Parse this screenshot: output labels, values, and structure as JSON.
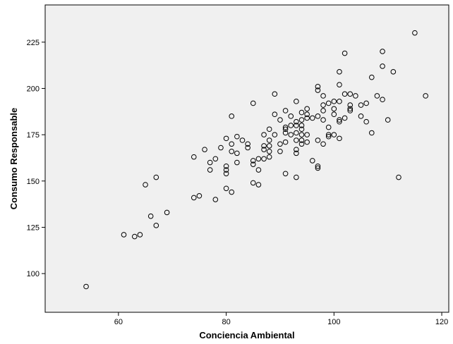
{
  "chart_data": {
    "type": "scatter",
    "title": "",
    "xlabel": "Conciencia Ambiental",
    "ylabel": "Consumo Responsable",
    "xlim": [
      46.4,
      121.3
    ],
    "ylim": [
      79.1,
      245.1
    ],
    "xticks": [
      60,
      80,
      100,
      120
    ],
    "yticks": [
      100,
      125,
      150,
      175,
      200,
      225
    ],
    "grid": false,
    "colors": {
      "background": "#f0f0f0",
      "marker": "#000000",
      "axis": "#000000"
    },
    "points": [
      [
        54,
        93
      ],
      [
        61,
        121
      ],
      [
        63,
        120
      ],
      [
        64,
        121
      ],
      [
        65,
        148
      ],
      [
        66,
        131
      ],
      [
        67,
        126
      ],
      [
        67,
        152
      ],
      [
        69,
        133
      ],
      [
        74,
        163
      ],
      [
        74,
        141
      ],
      [
        75,
        142
      ],
      [
        76,
        167
      ],
      [
        77,
        156
      ],
      [
        77,
        160
      ],
      [
        78,
        162
      ],
      [
        78,
        140
      ],
      [
        79,
        168
      ],
      [
        80,
        173
      ],
      [
        80,
        158
      ],
      [
        80,
        156
      ],
      [
        80,
        154
      ],
      [
        80,
        146
      ],
      [
        81,
        185
      ],
      [
        81,
        170
      ],
      [
        81,
        166
      ],
      [
        81,
        144
      ],
      [
        82,
        174
      ],
      [
        82,
        165
      ],
      [
        82,
        160
      ],
      [
        83,
        172
      ],
      [
        84,
        170
      ],
      [
        84,
        168
      ],
      [
        85,
        192
      ],
      [
        85,
        161
      ],
      [
        85,
        159
      ],
      [
        85,
        149
      ],
      [
        86,
        156
      ],
      [
        86,
        162
      ],
      [
        86,
        148
      ],
      [
        87,
        175
      ],
      [
        87,
        169
      ],
      [
        87,
        167
      ],
      [
        87,
        162
      ],
      [
        88,
        178
      ],
      [
        88,
        172
      ],
      [
        88,
        169
      ],
      [
        88,
        166
      ],
      [
        88,
        163
      ],
      [
        89,
        197
      ],
      [
        89,
        186
      ],
      [
        89,
        175
      ],
      [
        90,
        183
      ],
      [
        90,
        170
      ],
      [
        90,
        166
      ],
      [
        91,
        188
      ],
      [
        91,
        179
      ],
      [
        91,
        178
      ],
      [
        91,
        176
      ],
      [
        91,
        171
      ],
      [
        91,
        154
      ],
      [
        92,
        185
      ],
      [
        92,
        180
      ],
      [
        92,
        175
      ],
      [
        93,
        193
      ],
      [
        93,
        182
      ],
      [
        93,
        180
      ],
      [
        93,
        176
      ],
      [
        93,
        172
      ],
      [
        93,
        167
      ],
      [
        93,
        165
      ],
      [
        93,
        152
      ],
      [
        94,
        187
      ],
      [
        94,
        183
      ],
      [
        94,
        180
      ],
      [
        94,
        178
      ],
      [
        94,
        175
      ],
      [
        94,
        172
      ],
      [
        94,
        170
      ],
      [
        95,
        189
      ],
      [
        95,
        186
      ],
      [
        95,
        184
      ],
      [
        95,
        175
      ],
      [
        95,
        171
      ],
      [
        96,
        161
      ],
      [
        96,
        184
      ],
      [
        97,
        201
      ],
      [
        97,
        199
      ],
      [
        97,
        185
      ],
      [
        97,
        172
      ],
      [
        97,
        158
      ],
      [
        97,
        157
      ],
      [
        98,
        196
      ],
      [
        98,
        191
      ],
      [
        98,
        188
      ],
      [
        98,
        183
      ],
      [
        98,
        170
      ],
      [
        99,
        192
      ],
      [
        99,
        179
      ],
      [
        99,
        175
      ],
      [
        99,
        174
      ],
      [
        100,
        193
      ],
      [
        100,
        189
      ],
      [
        100,
        186
      ],
      [
        100,
        175
      ],
      [
        101,
        209
      ],
      [
        101,
        202
      ],
      [
        101,
        193
      ],
      [
        101,
        183
      ],
      [
        101,
        182
      ],
      [
        101,
        173
      ],
      [
        102,
        219
      ],
      [
        102,
        197
      ],
      [
        102,
        184
      ],
      [
        103,
        197
      ],
      [
        103,
        191
      ],
      [
        103,
        189
      ],
      [
        103,
        188
      ],
      [
        104,
        196
      ],
      [
        105,
        191
      ],
      [
        105,
        185
      ],
      [
        106,
        192
      ],
      [
        106,
        182
      ],
      [
        107,
        206
      ],
      [
        107,
        176
      ],
      [
        108,
        196
      ],
      [
        109,
        220
      ],
      [
        109,
        212
      ],
      [
        109,
        194
      ],
      [
        110,
        183
      ],
      [
        111,
        209
      ],
      [
        112,
        152
      ],
      [
        115,
        230
      ],
      [
        117,
        196
      ]
    ]
  }
}
